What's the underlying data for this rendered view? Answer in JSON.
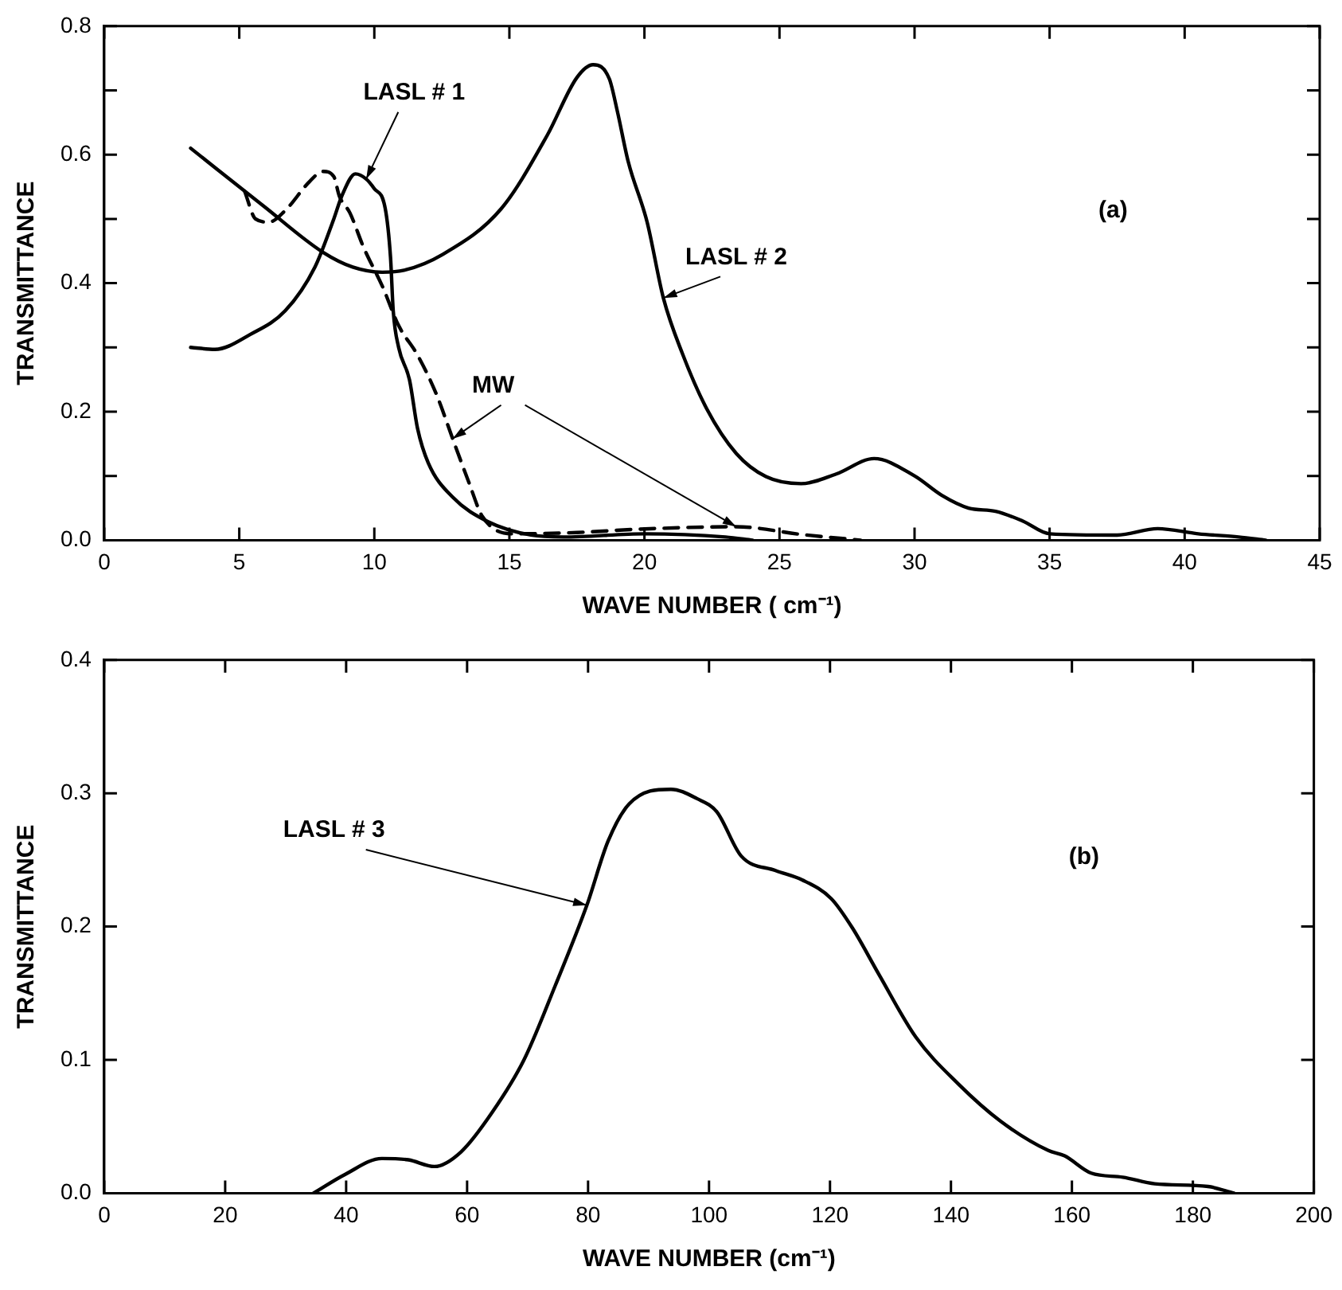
{
  "chart_data": [
    {
      "type": "line",
      "xlabel": "WAVE NUMBER ( cm⁻¹)",
      "ylabel": "TRANSMITTANCE",
      "xlim": [
        0,
        45
      ],
      "xticks": [
        0,
        5,
        10,
        15,
        20,
        25,
        30,
        35,
        40,
        45
      ],
      "ylim": [
        0,
        0.8
      ],
      "yticks": [
        {
          "value": 0,
          "label": "0.0"
        },
        {
          "value": 0.1,
          "label": null
        },
        {
          "value": 0.2,
          "label": "0.2"
        },
        {
          "value": 0.3,
          "label": null
        },
        {
          "value": 0.4,
          "label": "0.4"
        },
        {
          "value": 0.5,
          "label": null
        },
        {
          "value": 0.6,
          "label": "0.6"
        },
        {
          "value": 0.7,
          "label": null
        },
        {
          "value": 0.8,
          "label": "0.8"
        }
      ],
      "grid": false,
      "legend": false,
      "marker": "none",
      "annotations": [
        "(a)"
      ],
      "series": [
        {
          "name": "LASL # 1",
          "color": "#000000",
          "line_style": "solid",
          "x": [
            3.2,
            4.1,
            5.4,
            6.7,
            7.8,
            8.5,
            8.8,
            9.3,
            9.7,
            10.0,
            10.4,
            10.6,
            10.7,
            10.9,
            11.3,
            11.6,
            12.0,
            12.9,
            14.2,
            15.8,
            17,
            20,
            23,
            24
          ],
          "values": [
            0.3,
            0.297,
            0.32,
            0.357,
            0.425,
            0.5,
            0.536,
            0.57,
            0.562,
            0.547,
            0.517,
            0.44,
            0.357,
            0.3,
            0.25,
            0.174,
            0.12,
            0.067,
            0.029,
            0.008,
            0.005,
            0.01,
            0.005,
            0
          ]
        },
        {
          "name": "LASL # 2",
          "color": "#000000",
          "line_style": "solid",
          "x": [
            3.2,
            5.9,
            8.1,
            9.2,
            10.3,
            11.1,
            12.5,
            14.7,
            16.4,
            17.5,
            18.1,
            18.7,
            19.0,
            19.4,
            20.1,
            20.7,
            21.4,
            22.3,
            23.4,
            24.5,
            25.8,
            27.1,
            28.5,
            30,
            31,
            32,
            33,
            34,
            35,
            37.5,
            39,
            40.5,
            42,
            43
          ],
          "values": [
            0.61,
            0.52,
            0.448,
            0.425,
            0.417,
            0.42,
            0.444,
            0.516,
            0.63,
            0.72,
            0.74,
            0.718,
            0.667,
            0.589,
            0.495,
            0.377,
            0.291,
            0.205,
            0.135,
            0.099,
            0.088,
            0.103,
            0.127,
            0.1,
            0.07,
            0.05,
            0.045,
            0.03,
            0.01,
            0.008,
            0.018,
            0.01,
            0.005,
            0
          ]
        },
        {
          "name": "MW",
          "color": "#000000",
          "line_style": "dashed",
          "x": [
            5.2,
            5.6,
            6.1,
            6.7,
            7.6,
            8.1,
            8.5,
            8.7,
            9.1,
            9.6,
            10.3,
            10.9,
            11.6,
            12.3,
            12.9,
            13.5,
            14.0,
            15.1,
            17.5,
            19.7,
            23.4,
            25.8,
            28
          ],
          "values": [
            0.543,
            0.5,
            0.495,
            0.513,
            0.558,
            0.574,
            0.566,
            0.536,
            0.509,
            0.456,
            0.395,
            0.334,
            0.288,
            0.227,
            0.158,
            0.09,
            0.037,
            0.01,
            0.012,
            0.017,
            0.021,
            0.009,
            0
          ]
        }
      ]
    },
    {
      "type": "line",
      "xlabel": "WAVE NUMBER (cm⁻¹)",
      "ylabel": "TRANSMITTANCE",
      "xlim": [
        0,
        200
      ],
      "xticks": [
        0,
        20,
        40,
        60,
        80,
        100,
        120,
        140,
        160,
        180,
        200
      ],
      "ylim": [
        0,
        0.4
      ],
      "yticks": [
        {
          "value": 0,
          "label": "0.0"
        },
        {
          "value": 0.1,
          "label": "0.1"
        },
        {
          "value": 0.2,
          "label": "0.2"
        },
        {
          "value": 0.3,
          "label": "0.3"
        },
        {
          "value": 0.4,
          "label": "0.4"
        }
      ],
      "grid": false,
      "legend": false,
      "marker": "none",
      "annotations": [
        "(b)"
      ],
      "series": [
        {
          "name": "LASL # 3",
          "color": "#000000",
          "line_style": "solid",
          "x": [
            34.6,
            39.8,
            45.9,
            50.3,
            54.6,
            59,
            64.2,
            69.4,
            74.6,
            79.8,
            83.3,
            86.8,
            93.7,
            98,
            101.3,
            105.3,
            111,
            115.4,
            120.2,
            123.7,
            128.1,
            134.2,
            141.2,
            148.2,
            156.1,
            158.8,
            163.2,
            168.4,
            173.7,
            182.5,
            186.8
          ],
          "values": [
            0,
            0.014,
            0.026,
            0.025,
            0.02,
            0.031,
            0.061,
            0.1,
            0.156,
            0.216,
            0.264,
            0.292,
            0.303,
            0.296,
            0.286,
            0.253,
            0.242,
            0.235,
            0.221,
            0.199,
            0.164,
            0.117,
            0.082,
            0.054,
            0.032,
            0.028,
            0.015,
            0.012,
            0.007,
            0.005,
            0
          ]
        }
      ]
    }
  ]
}
